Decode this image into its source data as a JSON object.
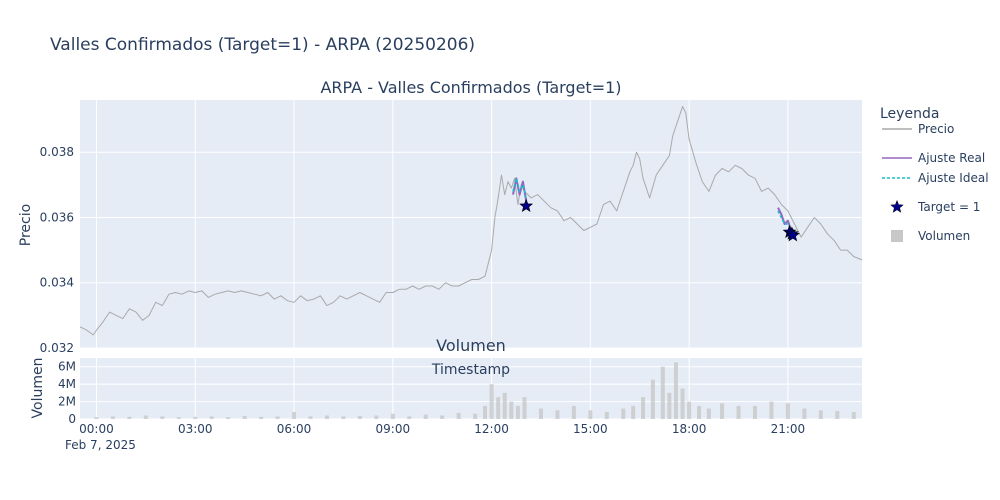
{
  "figure_title": "Valles Confirmados (Target=1) - ARPA (20250206)",
  "colors": {
    "plot_bg": "#e5ecf6",
    "grid": "#ffffff",
    "price": "#a9a9a9",
    "ajuste_real": "#9467bd",
    "ajuste_ideal": "#17becf",
    "target": "#00008b",
    "volume": "#c8c8c8",
    "text": "#2a3f5f"
  },
  "legend": {
    "title": "Leyenda",
    "items": [
      {
        "label": "Precio",
        "symbol": "line",
        "color": "#a9a9a9"
      },
      {
        "label": "Ajuste Real",
        "symbol": "line",
        "color": "#9467bd"
      },
      {
        "label": "Ajuste Ideal",
        "symbol": "dash",
        "color": "#17becf"
      },
      {
        "label": "Target = 1",
        "symbol": "star",
        "color": "#00008b"
      },
      {
        "label": "Volumen",
        "symbol": "square",
        "color": "#c8c8c8"
      }
    ]
  },
  "chart_data": [
    {
      "type": "line",
      "title": "ARPA - Valles Confirmados (Target=1)",
      "xlabel": "",
      "ylabel": "Precio",
      "x_unit": "hours since Feb 7, 2025 00:00",
      "xlim": [
        -0.5,
        23.25
      ],
      "ylim": [
        0.032,
        0.0396
      ],
      "yticks": [
        0.032,
        0.034,
        0.036,
        0.038
      ],
      "ytick_labels": [
        "0.032",
        "0.034",
        "0.036",
        "0.038"
      ],
      "grid": true,
      "legend_position": "right",
      "series": [
        {
          "name": "Precio",
          "x": [
            -0.5,
            -0.3,
            -0.1,
            0.0,
            0.2,
            0.4,
            0.6,
            0.8,
            1.0,
            1.2,
            1.4,
            1.6,
            1.8,
            2.0,
            2.2,
            2.4,
            2.6,
            2.8,
            3.0,
            3.2,
            3.4,
            3.6,
            3.8,
            4.0,
            4.2,
            4.4,
            4.6,
            4.8,
            5.0,
            5.2,
            5.4,
            5.6,
            5.8,
            6.0,
            6.2,
            6.4,
            6.6,
            6.8,
            7.0,
            7.2,
            7.4,
            7.6,
            7.8,
            8.0,
            8.2,
            8.4,
            8.6,
            8.8,
            9.0,
            9.2,
            9.4,
            9.6,
            9.8,
            10.0,
            10.2,
            10.4,
            10.6,
            10.8,
            11.0,
            11.2,
            11.4,
            11.6,
            11.8,
            11.9,
            12.0,
            12.1,
            12.2,
            12.3,
            12.4,
            12.5,
            12.6,
            12.7,
            12.8,
            12.9,
            13.0,
            13.2,
            13.4,
            13.6,
            13.8,
            14.0,
            14.2,
            14.4,
            14.6,
            14.8,
            15.0,
            15.2,
            15.4,
            15.6,
            15.8,
            16.0,
            16.2,
            16.3,
            16.4,
            16.5,
            16.6,
            16.8,
            17.0,
            17.2,
            17.4,
            17.5,
            17.6,
            17.7,
            17.8,
            17.9,
            18.0,
            18.2,
            18.4,
            18.6,
            18.8,
            19.0,
            19.2,
            19.4,
            19.6,
            19.8,
            20.0,
            20.2,
            20.4,
            20.6,
            20.8,
            21.0,
            21.2,
            21.4,
            21.6,
            21.8,
            22.0,
            22.2,
            22.4,
            22.6,
            22.8,
            23.0,
            23.25
          ],
          "y": [
            0.03265,
            0.03255,
            0.0324,
            0.03255,
            0.0328,
            0.0331,
            0.033,
            0.0329,
            0.0332,
            0.0331,
            0.03285,
            0.033,
            0.0334,
            0.0333,
            0.03365,
            0.0337,
            0.03365,
            0.03375,
            0.0337,
            0.03375,
            0.03355,
            0.03365,
            0.0337,
            0.03375,
            0.0337,
            0.03375,
            0.0337,
            0.03365,
            0.0336,
            0.0337,
            0.0335,
            0.0336,
            0.03345,
            0.0334,
            0.0336,
            0.03345,
            0.0335,
            0.0336,
            0.0333,
            0.0334,
            0.0336,
            0.0335,
            0.0336,
            0.0337,
            0.0336,
            0.0335,
            0.0334,
            0.0337,
            0.0337,
            0.0338,
            0.0338,
            0.0339,
            0.0338,
            0.0339,
            0.0339,
            0.0338,
            0.034,
            0.0339,
            0.0339,
            0.034,
            0.0341,
            0.0341,
            0.0342,
            0.0346,
            0.035,
            0.036,
            0.0366,
            0.0373,
            0.0367,
            0.0371,
            0.0369,
            0.0372,
            0.0364,
            0.037,
            0.0368,
            0.0366,
            0.0367,
            0.0365,
            0.0363,
            0.0362,
            0.0359,
            0.036,
            0.0358,
            0.0356,
            0.0357,
            0.0358,
            0.0364,
            0.0365,
            0.0362,
            0.0368,
            0.0374,
            0.0376,
            0.038,
            0.0378,
            0.0372,
            0.0366,
            0.0373,
            0.0376,
            0.0379,
            0.0385,
            0.0388,
            0.0391,
            0.0394,
            0.0392,
            0.0384,
            0.0377,
            0.0371,
            0.0368,
            0.0373,
            0.0375,
            0.0374,
            0.0376,
            0.0375,
            0.0373,
            0.0372,
            0.0368,
            0.0369,
            0.0367,
            0.0364,
            0.0362,
            0.0358,
            0.0354,
            0.0357,
            0.036,
            0.0358,
            0.0355,
            0.0353,
            0.035,
            0.035,
            0.0348,
            0.0347
          ]
        },
        {
          "name": "Ajuste Real",
          "x": [
            12.65,
            12.75,
            12.85,
            12.95,
            13.05
          ],
          "y": [
            0.0367,
            0.0372,
            0.0367,
            0.0371,
            0.0365
          ]
        },
        {
          "name": "Ajuste Ideal",
          "x": [
            12.65,
            12.75,
            12.85,
            12.95,
            13.05
          ],
          "y": [
            0.0368,
            0.0372,
            0.0368,
            0.037,
            0.0366
          ]
        },
        {
          "name": "Ajuste Real",
          "x": [
            20.7,
            20.8,
            20.9,
            21.0,
            21.1
          ],
          "y": [
            0.0363,
            0.0361,
            0.0358,
            0.0359,
            0.0356
          ]
        },
        {
          "name": "Ajuste Ideal",
          "x": [
            20.7,
            20.8,
            20.9,
            21.0,
            21.1
          ],
          "y": [
            0.0362,
            0.036,
            0.0358,
            0.0358,
            0.0356
          ]
        },
        {
          "name": "Target = 1",
          "type": "scatter",
          "x": [
            13.05,
            21.05,
            21.12,
            21.15
          ],
          "y": [
            0.03635,
            0.03555,
            0.0355,
            0.03545
          ]
        }
      ]
    },
    {
      "type": "bar",
      "title": "Volumen",
      "xlabel": "Timestamp",
      "ylabel": "Volumen",
      "xlim": [
        -0.5,
        23.25
      ],
      "ylim": [
        0,
        7000000
      ],
      "yticks": [
        0,
        2000000,
        4000000,
        6000000
      ],
      "ytick_labels": [
        "0",
        "2M",
        "4M",
        "6M"
      ],
      "xticks": [
        0,
        3,
        6,
        9,
        12,
        15,
        18,
        21
      ],
      "xtick_labels": [
        "00:00",
        "03:00",
        "06:00",
        "09:00",
        "12:00",
        "15:00",
        "18:00",
        "21:00"
      ],
      "date_label": "Feb 7, 2025",
      "series": [
        {
          "name": "Volumen",
          "x": [
            0.0,
            0.5,
            1.0,
            1.5,
            2.0,
            2.5,
            3.0,
            3.5,
            4.0,
            4.5,
            5.0,
            5.5,
            6.0,
            6.5,
            7.0,
            7.5,
            8.0,
            8.5,
            9.0,
            9.5,
            10.0,
            10.5,
            11.0,
            11.5,
            11.8,
            12.0,
            12.2,
            12.4,
            12.6,
            12.8,
            13.0,
            13.5,
            14.0,
            14.5,
            15.0,
            15.5,
            16.0,
            16.3,
            16.6,
            16.9,
            17.2,
            17.4,
            17.6,
            17.8,
            18.0,
            18.3,
            18.6,
            19.0,
            19.5,
            20.0,
            20.5,
            21.0,
            21.5,
            22.0,
            22.5,
            23.0
          ],
          "values": [
            200000,
            300000,
            250000,
            400000,
            300000,
            200000,
            250000,
            300000,
            200000,
            350000,
            250000,
            300000,
            800000,
            300000,
            400000,
            300000,
            350000,
            400000,
            600000,
            300000,
            500000,
            400000,
            700000,
            600000,
            1500000,
            4000000,
            2500000,
            3000000,
            2000000,
            1500000,
            2500000,
            1200000,
            1000000,
            1500000,
            1000000,
            800000,
            1200000,
            1500000,
            2500000,
            4500000,
            6000000,
            3000000,
            6500000,
            3500000,
            2000000,
            1500000,
            1200000,
            1800000,
            1500000,
            1500000,
            2000000,
            1800000,
            1200000,
            1000000,
            900000,
            800000
          ]
        }
      ]
    }
  ]
}
